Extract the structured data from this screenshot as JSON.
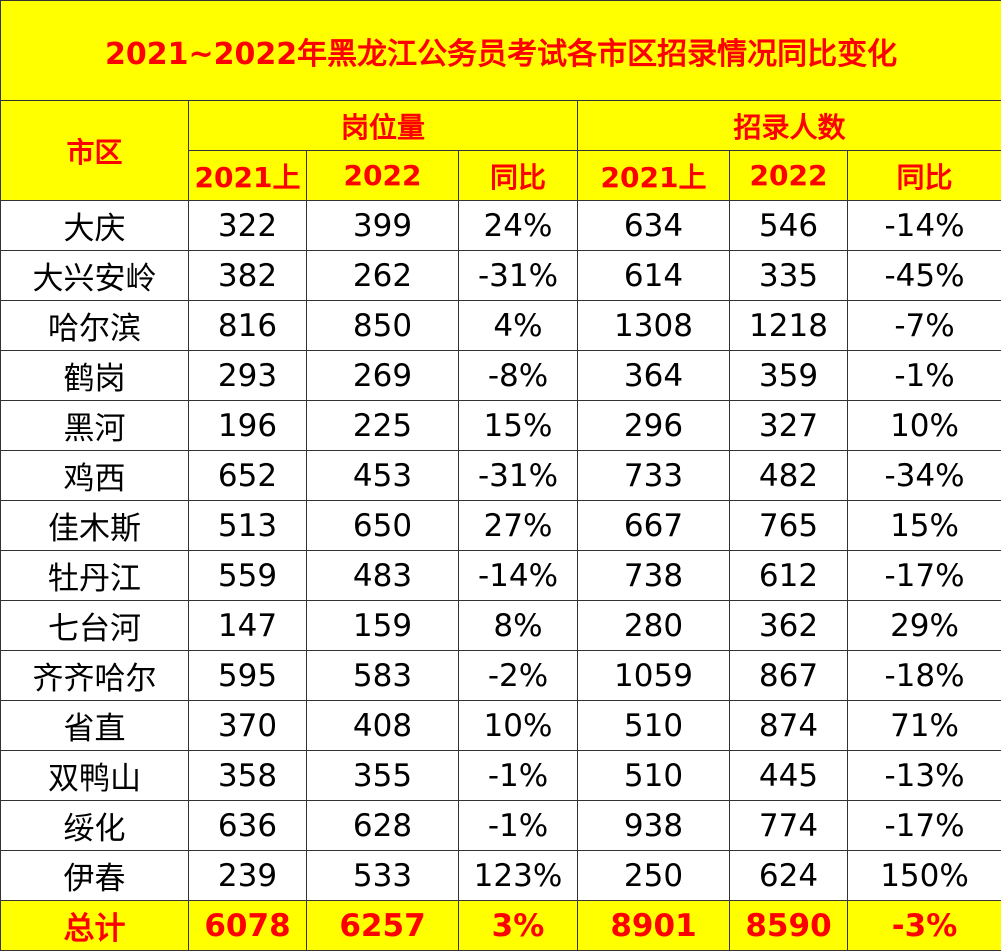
{
  "title": "2021~2022年黑龙江公务员考试各市区招录情况同比变化",
  "header": {
    "region_label": "市区",
    "group_positions": "岗位量",
    "group_hires": "招录人数",
    "col_2021": "2021上",
    "col_2022": "2022",
    "col_yoy": "同比"
  },
  "rows": [
    {
      "region": "大庆",
      "p2021": "322",
      "p2022": "399",
      "pyoy": "24%",
      "h2021": "634",
      "h2022": "546",
      "hyoy": "-14%"
    },
    {
      "region": "大兴安岭",
      "p2021": "382",
      "p2022": "262",
      "pyoy": "-31%",
      "h2021": "614",
      "h2022": "335",
      "hyoy": "-45%"
    },
    {
      "region": "哈尔滨",
      "p2021": "816",
      "p2022": "850",
      "pyoy": "4%",
      "h2021": "1308",
      "h2022": "1218",
      "hyoy": "-7%"
    },
    {
      "region": "鹤岗",
      "p2021": "293",
      "p2022": "269",
      "pyoy": "-8%",
      "h2021": "364",
      "h2022": "359",
      "hyoy": "-1%"
    },
    {
      "region": "黑河",
      "p2021": "196",
      "p2022": "225",
      "pyoy": "15%",
      "h2021": "296",
      "h2022": "327",
      "hyoy": "10%"
    },
    {
      "region": "鸡西",
      "p2021": "652",
      "p2022": "453",
      "pyoy": "-31%",
      "h2021": "733",
      "h2022": "482",
      "hyoy": "-34%"
    },
    {
      "region": "佳木斯",
      "p2021": "513",
      "p2022": "650",
      "pyoy": "27%",
      "h2021": "667",
      "h2022": "765",
      "hyoy": "15%"
    },
    {
      "region": "牡丹江",
      "p2021": "559",
      "p2022": "483",
      "pyoy": "-14%",
      "h2021": "738",
      "h2022": "612",
      "hyoy": "-17%"
    },
    {
      "region": "七台河",
      "p2021": "147",
      "p2022": "159",
      "pyoy": "8%",
      "h2021": "280",
      "h2022": "362",
      "hyoy": "29%"
    },
    {
      "region": "齐齐哈尔",
      "p2021": "595",
      "p2022": "583",
      "pyoy": "-2%",
      "h2021": "1059",
      "h2022": "867",
      "hyoy": "-18%"
    },
    {
      "region": "省直",
      "p2021": "370",
      "p2022": "408",
      "pyoy": "10%",
      "h2021": "510",
      "h2022": "874",
      "hyoy": "71%"
    },
    {
      "region": "双鸭山",
      "p2021": "358",
      "p2022": "355",
      "pyoy": "-1%",
      "h2021": "510",
      "h2022": "445",
      "hyoy": "-13%"
    },
    {
      "region": "绥化",
      "p2021": "636",
      "p2022": "628",
      "pyoy": "-1%",
      "h2021": "938",
      "h2022": "774",
      "hyoy": "-17%"
    },
    {
      "region": "伊春",
      "p2021": "239",
      "p2022": "533",
      "pyoy": "123%",
      "h2021": "250",
      "h2022": "624",
      "hyoy": "150%"
    }
  ],
  "total": {
    "region": "总计",
    "p2021": "6078",
    "p2022": "6257",
    "pyoy": "3%",
    "h2021": "8901",
    "h2022": "8590",
    "hyoy": "-3%"
  },
  "colors": {
    "header_bg": "#ffff00",
    "header_text": "#ff0000",
    "body_text": "#000000",
    "border": "#333333"
  }
}
